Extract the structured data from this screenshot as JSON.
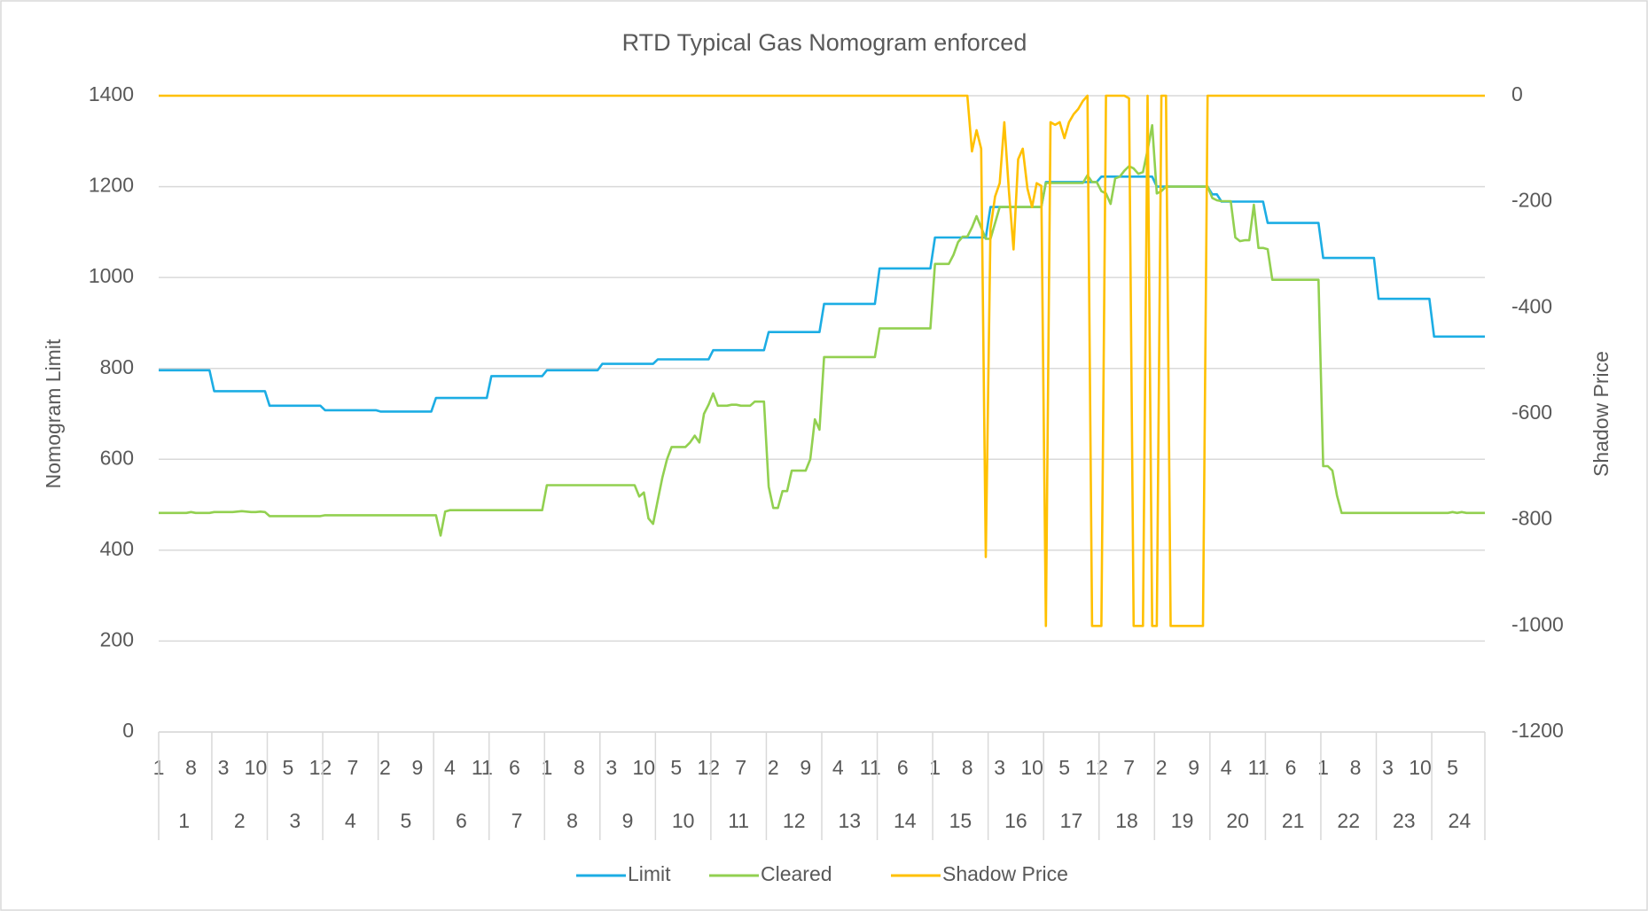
{
  "chart_data": {
    "type": "line",
    "title": "RTD Typical Gas Nomogram enforced",
    "y_label": "Nomogram Limit",
    "y2_label": "Shadow Price",
    "categories": [
      "1",
      null,
      null,
      null,
      null,
      null,
      null,
      "8",
      null,
      null,
      null,
      null,
      null,
      null,
      "3",
      null,
      null,
      null,
      null,
      null,
      null,
      "10",
      null,
      null,
      null,
      null,
      null,
      null,
      "5",
      null,
      null,
      null,
      null,
      null,
      null,
      "12",
      null,
      null,
      null,
      null,
      null,
      null,
      "7",
      null,
      null,
      null,
      null,
      null,
      null,
      "2",
      null,
      null,
      null,
      null,
      null,
      null,
      "9",
      null,
      null,
      null,
      null,
      null,
      null,
      "4",
      null,
      null,
      null,
      null,
      null,
      null,
      "11",
      null,
      null,
      null,
      null,
      null,
      null,
      "6",
      null,
      null,
      null,
      null,
      null,
      null,
      "1",
      null,
      null,
      null,
      null,
      null,
      null,
      "8",
      null,
      null,
      null,
      null,
      null,
      null,
      "3",
      null,
      null,
      null,
      null,
      null,
      null,
      "10",
      null,
      null,
      null,
      null,
      null,
      null,
      "5",
      null,
      null,
      null,
      null,
      null,
      null,
      "12",
      null,
      null,
      null,
      null,
      null,
      null,
      "7",
      null,
      null,
      null,
      null,
      null,
      null,
      "2",
      null,
      null,
      null,
      null,
      null,
      null,
      "9",
      null,
      null,
      null,
      null,
      null,
      null,
      "4",
      null,
      null,
      null,
      null,
      null,
      null,
      "11",
      null,
      null,
      null,
      null,
      null,
      null,
      "6",
      null,
      null,
      null,
      null,
      null,
      null,
      "1",
      null,
      null,
      null,
      null,
      null,
      null,
      "8",
      null,
      null,
      null,
      null,
      null,
      null,
      "3",
      null,
      null,
      null,
      null,
      null,
      null,
      "10",
      null,
      null,
      null,
      null,
      null,
      null,
      "5",
      null,
      null,
      null,
      null,
      null,
      null,
      "12",
      null,
      null,
      null,
      null,
      null,
      null,
      "7",
      null,
      null,
      null,
      null,
      null,
      null,
      "2",
      null,
      null,
      null,
      null,
      null,
      null,
      "9",
      null,
      null,
      null,
      null,
      null,
      null,
      "4",
      null,
      null,
      null,
      null,
      null,
      null,
      "11",
      null,
      null,
      null,
      null,
      null,
      null,
      "6",
      null,
      null,
      null,
      null,
      null,
      null,
      "1",
      null,
      null,
      null,
      null,
      null,
      null,
      "8",
      null,
      null,
      null,
      null,
      null,
      null,
      "3",
      null,
      null,
      null,
      null,
      null,
      null,
      "10",
      null,
      null,
      null,
      null,
      null,
      null,
      "5",
      null,
      null,
      null,
      null,
      null,
      null,
      null
    ],
    "category_groups": [
      "1",
      "2",
      "3",
      "4",
      "5",
      "6",
      "7",
      "8",
      "9",
      "10",
      "11",
      "12",
      "13",
      "14",
      "15",
      "16",
      "17",
      "18",
      "19",
      "20",
      "21",
      "22",
      "23",
      "24"
    ],
    "ylim": [
      0,
      1400
    ],
    "yticks": [
      0,
      200,
      400,
      600,
      800,
      1000,
      1200,
      1400
    ],
    "y2lim": [
      -1200,
      0
    ],
    "y2ticks": [
      -1200,
      -1000,
      -800,
      -600,
      -400,
      -200,
      0
    ],
    "grid": true,
    "legend": "bottom",
    "series": [
      {
        "name": "Limit",
        "color": "#1cade4",
        "values": [
          796,
          796,
          796,
          796,
          796,
          796,
          796,
          796,
          796,
          796,
          796,
          796,
          750,
          750,
          750,
          750,
          750,
          750,
          750,
          750,
          750,
          750,
          750,
          750,
          718,
          718,
          718,
          718,
          718,
          718,
          718,
          718,
          718,
          718,
          718,
          718,
          708,
          708,
          708,
          708,
          708,
          708,
          708,
          708,
          708,
          708,
          708,
          708,
          705,
          705,
          705,
          705,
          705,
          705,
          705,
          705,
          705,
          705,
          705,
          705,
          735,
          735,
          735,
          735,
          735,
          735,
          735,
          735,
          735,
          735,
          735,
          735,
          783,
          783,
          783,
          783,
          783,
          783,
          783,
          783,
          783,
          783,
          783,
          783,
          796,
          796,
          796,
          796,
          796,
          796,
          796,
          796,
          796,
          796,
          796,
          796,
          810,
          810,
          810,
          810,
          810,
          810,
          810,
          810,
          810,
          810,
          810,
          810,
          820,
          820,
          820,
          820,
          820,
          820,
          820,
          820,
          820,
          820,
          820,
          820,
          840,
          840,
          840,
          840,
          840,
          840,
          840,
          840,
          840,
          840,
          840,
          840,
          880,
          880,
          880,
          880,
          880,
          880,
          880,
          880,
          880,
          880,
          880,
          880,
          942,
          942,
          942,
          942,
          942,
          942,
          942,
          942,
          942,
          942,
          942,
          942,
          1020,
          1020,
          1020,
          1020,
          1020,
          1020,
          1020,
          1020,
          1020,
          1020,
          1020,
          1020,
          1088,
          1088,
          1088,
          1088,
          1088,
          1088,
          1088,
          1088,
          1088,
          1088,
          1088,
          1088,
          1155,
          1155,
          1155,
          1155,
          1155,
          1155,
          1155,
          1155,
          1155,
          1155,
          1155,
          1155,
          1210,
          1210,
          1210,
          1210,
          1210,
          1210,
          1210,
          1210,
          1210,
          1210,
          1210,
          1210,
          1222,
          1222,
          1222,
          1222,
          1222,
          1222,
          1222,
          1222,
          1222,
          1222,
          1222,
          1222,
          1200,
          1200,
          1200,
          1200,
          1200,
          1200,
          1200,
          1200,
          1200,
          1200,
          1200,
          1200,
          1183,
          1183,
          1167,
          1167,
          1167,
          1167,
          1167,
          1167,
          1167,
          1167,
          1167,
          1167,
          1120,
          1120,
          1120,
          1120,
          1120,
          1120,
          1120,
          1120,
          1120,
          1120,
          1120,
          1120,
          1043,
          1043,
          1043,
          1043,
          1043,
          1043,
          1043,
          1043,
          1043,
          1043,
          1043,
          1043,
          953,
          953,
          953,
          953,
          953,
          953,
          953,
          953,
          953,
          953,
          953,
          953,
          870,
          870,
          870,
          870,
          870,
          870,
          870,
          870,
          870,
          870,
          870,
          870
        ]
      },
      {
        "name": "Cleared",
        "color": "#92d050",
        "values": [
          482,
          482,
          482,
          482,
          482,
          482,
          482,
          484,
          482,
          482,
          482,
          482,
          484,
          484,
          484,
          484,
          484,
          485,
          486,
          485,
          484,
          484,
          485,
          484,
          475,
          475,
          475,
          475,
          475,
          475,
          475,
          475,
          475,
          475,
          475,
          475,
          477,
          477,
          477,
          477,
          477,
          477,
          477,
          477,
          477,
          477,
          477,
          477,
          477,
          477,
          477,
          477,
          477,
          477,
          477,
          477,
          477,
          477,
          477,
          477,
          477,
          432,
          485,
          488,
          488,
          488,
          488,
          488,
          488,
          488,
          488,
          488,
          488,
          488,
          488,
          488,
          488,
          488,
          488,
          488,
          488,
          488,
          488,
          488,
          543,
          543,
          543,
          543,
          543,
          543,
          543,
          543,
          543,
          543,
          543,
          543,
          543,
          543,
          543,
          543,
          543,
          543,
          543,
          543,
          518,
          527,
          470,
          458,
          510,
          560,
          600,
          627,
          627,
          627,
          627,
          637,
          652,
          637,
          700,
          720,
          745,
          718,
          718,
          718,
          720,
          720,
          718,
          718,
          718,
          727,
          727,
          727,
          540,
          493,
          493,
          530,
          530,
          575,
          575,
          575,
          575,
          600,
          688,
          665,
          825,
          825,
          825,
          825,
          825,
          825,
          825,
          825,
          825,
          825,
          825,
          825,
          888,
          888,
          888,
          888,
          888,
          888,
          888,
          888,
          888,
          888,
          888,
          888,
          1030,
          1030,
          1030,
          1030,
          1050,
          1078,
          1090,
          1090,
          1110,
          1135,
          1110,
          1085,
          1085,
          1120,
          1155,
          1155,
          1155,
          1155,
          1155,
          1155,
          1155,
          1155,
          1155,
          1155,
          1208,
          1208,
          1208,
          1208,
          1208,
          1208,
          1208,
          1208,
          1208,
          1225,
          1210,
          1210,
          1190,
          1185,
          1162,
          1218,
          1222,
          1235,
          1245,
          1240,
          1228,
          1232,
          1280,
          1335,
          1185,
          1190,
          1200,
          1200,
          1200,
          1200,
          1200,
          1200,
          1200,
          1200,
          1200,
          1200,
          1175,
          1170,
          1168,
          1168,
          1168,
          1088,
          1080,
          1082,
          1082,
          1160,
          1065,
          1065,
          1062,
          995,
          995,
          995,
          995,
          995,
          995,
          995,
          995,
          995,
          995,
          995,
          585,
          585,
          575,
          520,
          482,
          482,
          482,
          482,
          482,
          482,
          482,
          482,
          482,
          482,
          482,
          482,
          482,
          482,
          482,
          482,
          482,
          482,
          482,
          482,
          482,
          482,
          482,
          482,
          484,
          482,
          484,
          482,
          482,
          482,
          482,
          482
        ]
      },
      {
        "name": "Shadow Price",
        "color": "#ffc000",
        "axis": "y2",
        "values": [
          0,
          0,
          0,
          0,
          0,
          0,
          0,
          0,
          0,
          0,
          0,
          0,
          0,
          0,
          0,
          0,
          0,
          0,
          0,
          0,
          0,
          0,
          0,
          0,
          0,
          0,
          0,
          0,
          0,
          0,
          0,
          0,
          0,
          0,
          0,
          0,
          0,
          0,
          0,
          0,
          0,
          0,
          0,
          0,
          0,
          0,
          0,
          0,
          0,
          0,
          0,
          0,
          0,
          0,
          0,
          0,
          0,
          0,
          0,
          0,
          0,
          0,
          0,
          0,
          0,
          0,
          0,
          0,
          0,
          0,
          0,
          0,
          0,
          0,
          0,
          0,
          0,
          0,
          0,
          0,
          0,
          0,
          0,
          0,
          0,
          0,
          0,
          0,
          0,
          0,
          0,
          0,
          0,
          0,
          0,
          0,
          0,
          0,
          0,
          0,
          0,
          0,
          0,
          0,
          0,
          0,
          0,
          0,
          0,
          0,
          0,
          0,
          0,
          0,
          0,
          0,
          0,
          0,
          0,
          0,
          0,
          0,
          0,
          0,
          0,
          0,
          0,
          0,
          0,
          0,
          0,
          0,
          0,
          0,
          0,
          0,
          0,
          0,
          0,
          0,
          0,
          0,
          0,
          0,
          0,
          0,
          0,
          0,
          0,
          0,
          0,
          0,
          0,
          0,
          0,
          0,
          0,
          0,
          0,
          0,
          0,
          0,
          0,
          0,
          0,
          0,
          0,
          0,
          0,
          0,
          0,
          0,
          0,
          0,
          0,
          0,
          -105,
          -65,
          -100,
          -870,
          -250,
          -190,
          -165,
          -50,
          -180,
          -290,
          -120,
          -100,
          -175,
          -210,
          -165,
          -170,
          -1000,
          -50,
          -55,
          -50,
          -80,
          -50,
          -35,
          -25,
          -10,
          0,
          -1000,
          -1000,
          -1000,
          0,
          0,
          0,
          0,
          0,
          -5,
          -1000,
          -1000,
          -1000,
          0,
          -1000,
          -1000,
          0,
          0,
          -1000,
          -1000,
          -1000,
          -1000,
          -1000,
          -1000,
          -1000,
          -1000,
          0,
          0,
          0,
          0,
          0,
          0,
          0,
          0,
          0,
          0,
          0,
          0,
          0,
          0,
          0,
          0,
          0,
          0,
          0,
          0,
          0,
          0,
          0,
          0,
          0,
          0,
          0,
          0,
          0,
          0,
          0,
          0,
          0,
          0,
          0,
          0,
          0,
          0,
          0,
          0,
          0,
          0,
          0,
          0,
          0,
          0,
          0,
          0,
          0,
          0,
          0,
          0,
          0,
          0,
          0,
          0,
          0,
          0,
          0,
          0,
          0
        ]
      }
    ]
  }
}
